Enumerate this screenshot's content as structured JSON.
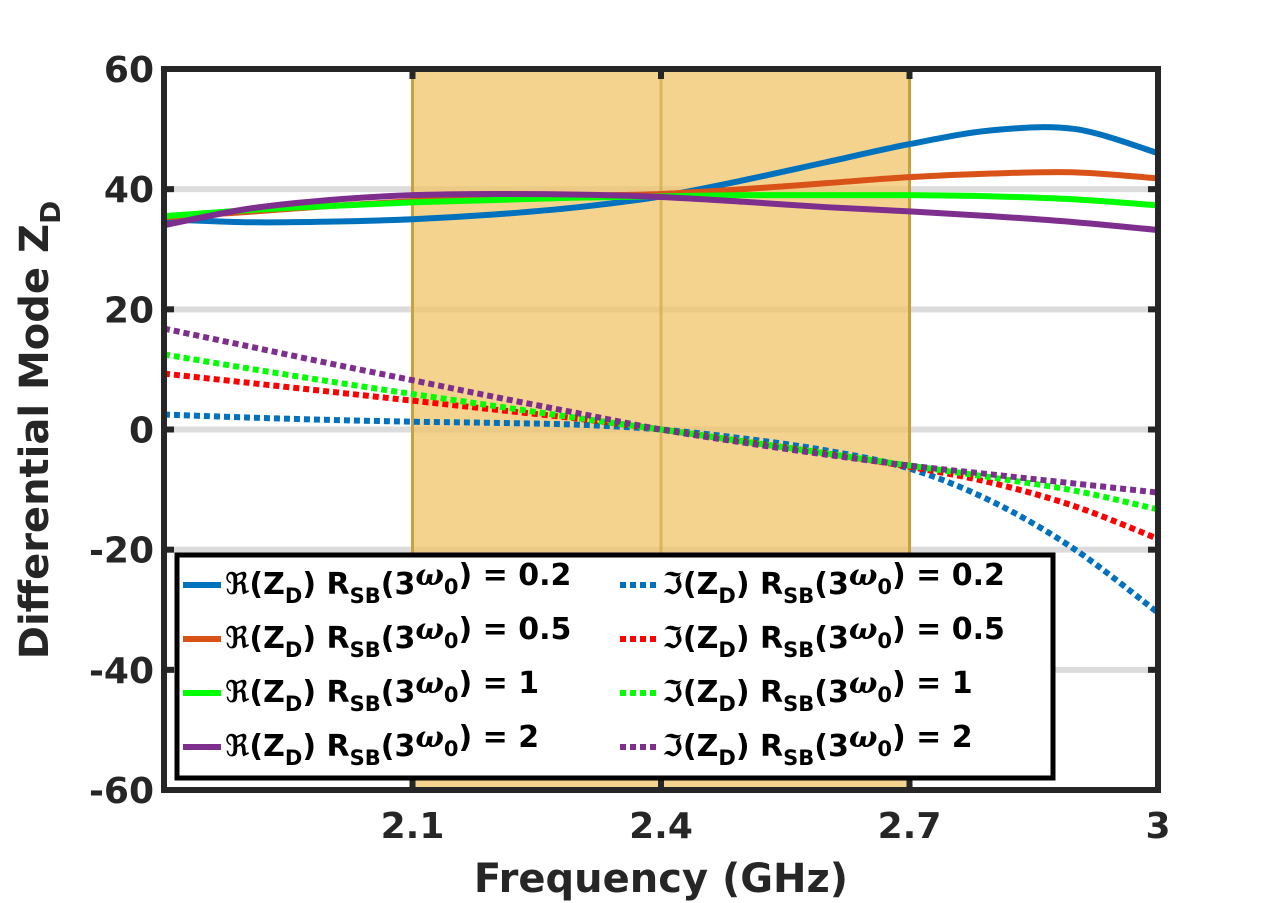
{
  "chart_data": {
    "type": "line",
    "title": "",
    "xlabel": "Frequency (GHz)",
    "ylabel": "Differential Mode Z",
    "ylabel_subscript": "D",
    "xlim": [
      1.8,
      3.0
    ],
    "ylim": [
      -60,
      60
    ],
    "x_ticks": [
      2.1,
      2.4,
      2.7,
      3.0
    ],
    "x_tick_labels": [
      "2.1",
      "2.4",
      "2.7",
      "3"
    ],
    "y_ticks": [
      -60,
      -40,
      -20,
      0,
      20,
      40,
      60
    ],
    "y_tick_labels": [
      "-60",
      "-40",
      "-20",
      "0",
      "20",
      "40",
      "60"
    ],
    "grid": "horizontal",
    "band": {
      "x_start": 2.1,
      "x_end": 2.7,
      "marker_x": 2.4,
      "color": "#f0c46a"
    },
    "legend_position": "bottom-left",
    "x": [
      1.8,
      1.9,
      2.0,
      2.1,
      2.2,
      2.3,
      2.4,
      2.5,
      2.6,
      2.7,
      2.8,
      2.9,
      3.0
    ],
    "series": [
      {
        "legend": {
          "prefix": "ℜ(Z",
          "sub": "D",
          "mid": ") R",
          "sub2": "SB",
          "arg": "(3",
          "omega": "ω",
          "sub3": "0",
          "suffix": ") = 0.2"
        },
        "style": "solid",
        "color": "#0072bd",
        "values": [
          35,
          34.5,
          34.6,
          35,
          35.8,
          37,
          38.8,
          41.5,
          44.5,
          47.5,
          49.8,
          50.0,
          46.0
        ]
      },
      {
        "legend": {
          "prefix": "ℜ(Z",
          "sub": "D",
          "mid": ") R",
          "sub2": "SB",
          "arg": "(3",
          "omega": "ω",
          "sub3": "0",
          "suffix": ") = 0.5"
        },
        "style": "solid",
        "color": "#d95319",
        "values": [
          35.3,
          36.2,
          37.2,
          38.0,
          38.6,
          38.9,
          39.2,
          40.0,
          41.0,
          42.0,
          42.6,
          42.8,
          41.8
        ]
      },
      {
        "legend": {
          "prefix": "ℜ(Z",
          "sub": "D",
          "mid": ") R",
          "sub2": "SB",
          "arg": "(3",
          "omega": "ω",
          "sub3": "0",
          "suffix": ") = 1"
        },
        "style": "solid",
        "color": "#00ff00",
        "values": [
          35.5,
          36.5,
          37.2,
          37.8,
          38.2,
          38.6,
          38.8,
          39.0,
          39.0,
          39.0,
          38.8,
          38.3,
          37.3
        ]
      },
      {
        "legend": {
          "prefix": "ℜ(Z",
          "sub": "D",
          "mid": ") R",
          "sub2": "SB",
          "arg": "(3",
          "omega": "ω",
          "sub3": "0",
          "suffix": ") = 2"
        },
        "style": "solid",
        "color": "#7e2f8e",
        "values": [
          34.0,
          36.7,
          38.2,
          39.0,
          39.2,
          39.1,
          38.7,
          37.9,
          37.0,
          36.3,
          35.5,
          34.5,
          33.2
        ]
      },
      {
        "legend": {
          "prefix": "ℑ(Z",
          "sub": "D",
          "mid": ") R",
          "sub2": "SB",
          "arg": "(3",
          "omega": "ω",
          "sub3": "0",
          "suffix": ") = 0.2"
        },
        "style": "dotted",
        "color": "#0072bd",
        "values": [
          2.5,
          2.0,
          1.6,
          1.3,
          1.1,
          0.8,
          0.0,
          -1.5,
          -3.5,
          -6.5,
          -12.0,
          -20.0,
          -30.5
        ]
      },
      {
        "legend": {
          "prefix": "ℑ(Z",
          "sub": "D",
          "mid": ") R",
          "sub2": "SB",
          "arg": "(3",
          "omega": "ω",
          "sub3": "0",
          "suffix": ") = 0.5"
        },
        "style": "dotted",
        "color": "#ff0000",
        "values": [
          9.3,
          7.8,
          6.3,
          4.8,
          3.3,
          1.8,
          0.0,
          -2.0,
          -4.0,
          -6.2,
          -8.9,
          -12.8,
          -18.2
        ]
      },
      {
        "legend": {
          "prefix": "ℑ(Z",
          "sub": "D",
          "mid": ") R",
          "sub2": "SB",
          "arg": "(3",
          "omega": "ω",
          "sub3": "0",
          "suffix": ") = 1"
        },
        "style": "dotted",
        "color": "#00ff00",
        "values": [
          12.5,
          10.2,
          8.0,
          5.9,
          3.9,
          1.9,
          0.0,
          -2.0,
          -4.0,
          -6.0,
          -8.0,
          -10.2,
          -13.3
        ]
      },
      {
        "legend": {
          "prefix": "ℑ(Z",
          "sub": "D",
          "mid": ") R",
          "sub2": "SB",
          "arg": "(3",
          "omega": "ω",
          "sub3": "0",
          "suffix": ") = 2"
        },
        "style": "dotted",
        "color": "#7e2f8e",
        "values": [
          16.8,
          13.9,
          11.0,
          8.2,
          5.4,
          2.7,
          0.0,
          -2.2,
          -4.2,
          -6.0,
          -7.5,
          -9.0,
          -10.5
        ]
      }
    ]
  }
}
